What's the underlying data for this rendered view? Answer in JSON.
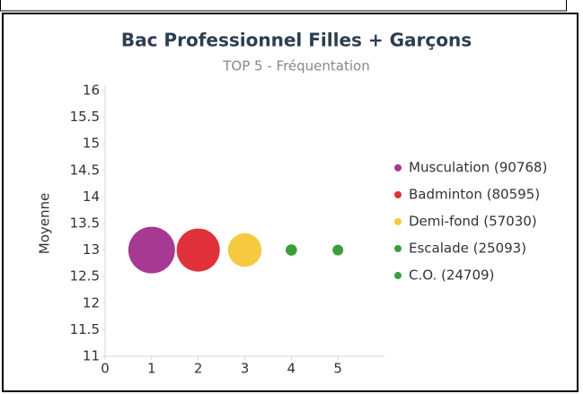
{
  "chart_data": {
    "type": "bubble",
    "title": "Bac Professionnel Filles + Garçons",
    "subtitle": "TOP 5 - Fréquentation",
    "y_label": "Moyenne",
    "xlim": [
      0,
      6
    ],
    "xticks": [
      0,
      1,
      2,
      3,
      4,
      5
    ],
    "ylim": [
      11,
      16
    ],
    "yticks": [
      11,
      11.5,
      12,
      12.5,
      13,
      13.5,
      14,
      14.5,
      15,
      15.5,
      16
    ],
    "legend": "right",
    "series": [
      {
        "name": "Musculation (90768)",
        "color": "#a63a93",
        "x": [
          1
        ],
        "values": [
          13
        ],
        "sizes": [
          90768
        ]
      },
      {
        "name": "Badminton (80595)",
        "color": "#e0313b",
        "x": [
          2
        ],
        "values": [
          13
        ],
        "sizes": [
          80595
        ]
      },
      {
        "name": "Demi-fond (57030)",
        "color": "#f5c940",
        "x": [
          3
        ],
        "values": [
          13
        ],
        "sizes": [
          57030
        ]
      },
      {
        "name": "Escalade (25093)",
        "color": "#3a9e3a",
        "x": [
          4
        ],
        "values": [
          13
        ],
        "sizes": [
          25093
        ]
      },
      {
        "name": "C.O. (24709)",
        "color": "#3a9e3a",
        "x": [
          5
        ],
        "values": [
          13
        ],
        "sizes": [
          24709
        ]
      }
    ]
  }
}
